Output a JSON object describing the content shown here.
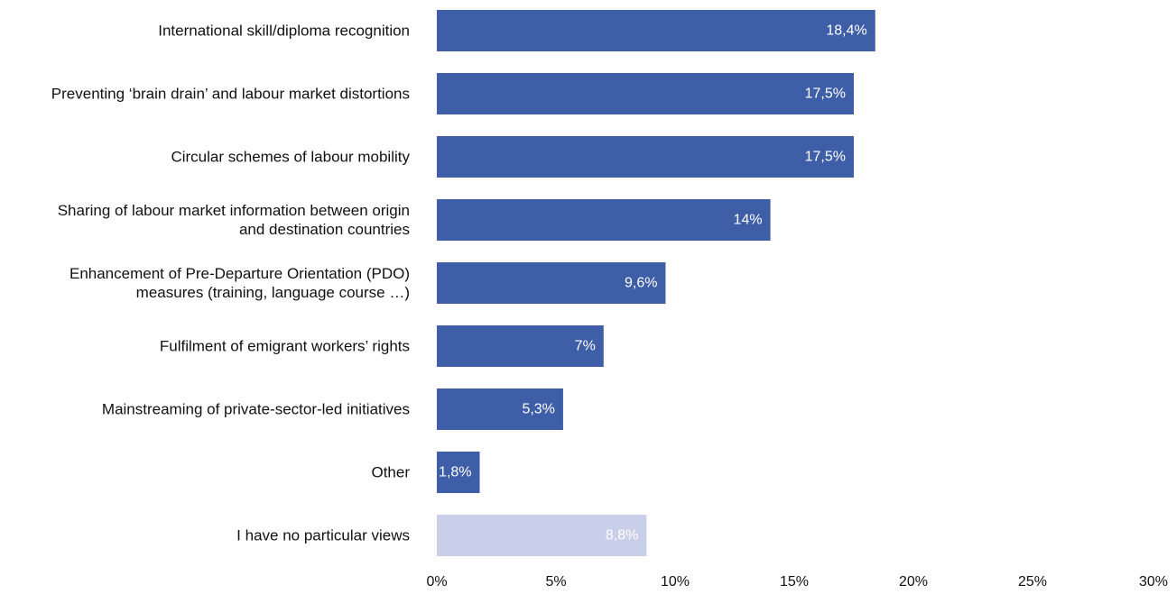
{
  "chart_data": {
    "type": "bar",
    "orientation": "horizontal",
    "categories": [
      [
        "International skill/diploma recognition"
      ],
      [
        "Preventing ‘brain drain’ and labour market distortions"
      ],
      [
        "Circular schemes of labour mobility"
      ],
      [
        "Sharing of labour market information between origin",
        "and destination countries"
      ],
      [
        "Enhancement of Pre-Departure Orientation (PDO)",
        "measures (training, language course …)"
      ],
      [
        "Fulfilment of emigrant workers’ rights"
      ],
      [
        "Mainstreaming of private-sector-led initiatives"
      ],
      [
        "Other"
      ],
      [
        "I have no particular views"
      ]
    ],
    "values": [
      18.4,
      17.5,
      17.5,
      14,
      9.6,
      7,
      5.3,
      1.8,
      8.8
    ],
    "value_labels": [
      "18,4%",
      "17,5%",
      "17,5%",
      "14%",
      "9,6%",
      "7%",
      "5,3%",
      "1,8%",
      "8,8%"
    ],
    "bar_colors": [
      "#3f5ea8",
      "#3f5ea8",
      "#3f5ea8",
      "#3f5ea8",
      "#3f5ea8",
      "#3f5ea8",
      "#3f5ea8",
      "#3f5ea8",
      "#c9cfe8"
    ],
    "xlim": [
      0,
      30
    ],
    "xticks": [
      0,
      5,
      10,
      15,
      20,
      25,
      30
    ],
    "xtick_labels": [
      "0%",
      "5%",
      "10%",
      "15%",
      "20%",
      "25%",
      "30%"
    ],
    "grid": false,
    "legend": "none"
  }
}
